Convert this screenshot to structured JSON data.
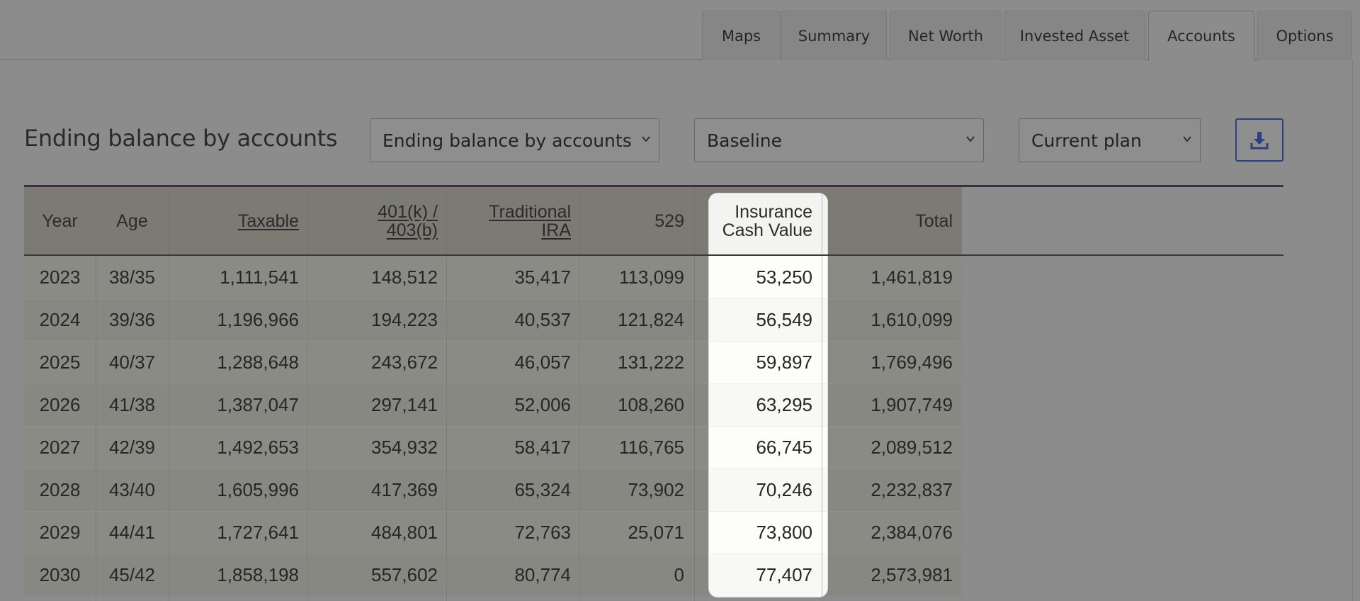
{
  "tabs": [
    {
      "label": "Maps",
      "active": false
    },
    {
      "label": "Summary",
      "active": false
    },
    {
      "label": "Net Worth",
      "active": false
    },
    {
      "label": "Invested Asset",
      "active": false
    },
    {
      "label": "Accounts",
      "active": true
    },
    {
      "label": "Options",
      "active": false
    }
  ],
  "toolbar": {
    "title": "Ending balance by accounts",
    "report_select": "Ending balance by accounts",
    "scenario_select": "Baseline",
    "plan_select": "Current plan",
    "download_icon": "download-icon"
  },
  "table": {
    "columns": {
      "year": "Year",
      "age": "Age",
      "taxable": "Taxable",
      "k401_line1": "401(k) /",
      "k401_line2": "403(b)",
      "ira_line1": "Traditional",
      "ira_line2": "IRA",
      "c529": "529",
      "ins_line1": "Insurance",
      "ins_line2": "Cash Value",
      "total": "Total"
    },
    "highlighted_column": "Insurance Cash Value",
    "rows": [
      [
        "2023",
        "38/35",
        "1,111,541",
        "148,512",
        "35,417",
        "113,099",
        "53,250",
        "1,461,819"
      ],
      [
        "2024",
        "39/36",
        "1,196,966",
        "194,223",
        "40,537",
        "121,824",
        "56,549",
        "1,610,099"
      ],
      [
        "2025",
        "40/37",
        "1,288,648",
        "243,672",
        "46,057",
        "131,222",
        "59,897",
        "1,769,496"
      ],
      [
        "2026",
        "41/38",
        "1,387,047",
        "297,141",
        "52,006",
        "108,260",
        "63,295",
        "1,907,749"
      ],
      [
        "2027",
        "42/39",
        "1,492,653",
        "354,932",
        "58,417",
        "116,765",
        "66,745",
        "2,089,512"
      ],
      [
        "2028",
        "43/40",
        "1,605,996",
        "417,369",
        "65,324",
        "73,902",
        "70,246",
        "2,232,837"
      ],
      [
        "2029",
        "44/41",
        "1,727,641",
        "484,801",
        "72,763",
        "25,071",
        "73,800",
        "2,384,076"
      ],
      [
        "2030",
        "45/42",
        "1,858,198",
        "557,602",
        "80,774",
        "0",
        "77,407",
        "2,573,981"
      ]
    ]
  },
  "colors": {
    "overlay_background": "#8c8c8c",
    "download_accent": "#2e3f7f",
    "highlight": "#ffffff"
  }
}
